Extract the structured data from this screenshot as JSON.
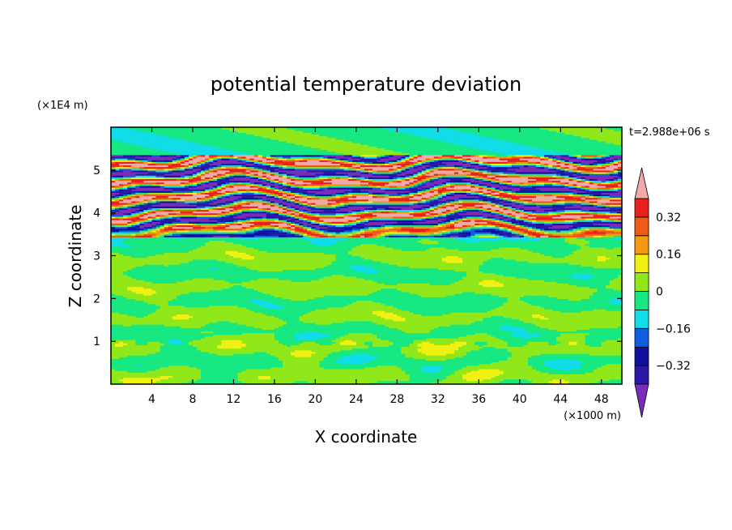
{
  "chart_data": {
    "type": "heatmap",
    "title": "potential temperature deviation",
    "xlabel": "X coordinate",
    "ylabel": "Z coordinate",
    "x_unit": "(×1000 m)",
    "y_unit": "(×1E4 m)",
    "time_label": "t=2.988e+06 s",
    "xlim": [
      0,
      50
    ],
    "ylim": [
      0,
      6
    ],
    "x_ticks": [
      4,
      8,
      12,
      16,
      20,
      24,
      28,
      32,
      36,
      40,
      44,
      48
    ],
    "y_ticks": [
      1,
      2,
      3,
      4,
      5
    ],
    "colorbar": {
      "levels": [
        -0.4,
        -0.32,
        -0.24,
        -0.16,
        -0.08,
        0,
        0.08,
        0.16,
        0.24,
        0.32,
        0.4
      ],
      "labeled_ticks": [
        0.32,
        0.16,
        0,
        -0.16,
        -0.32
      ],
      "tick_labels": [
        "0.32",
        "0.16",
        "0",
        "−0.16",
        "−0.32"
      ],
      "colors": [
        "#7a2cb8",
        "#2a18a8",
        "#1010a0",
        "#0d5fe0",
        "#10dde8",
        "#18e882",
        "#90e81a",
        "#f0f012",
        "#f59a10",
        "#f05a18",
        "#e82020",
        "#f0a8a8"
      ],
      "extend": "both"
    },
    "bands": [
      {
        "z": 5.15,
        "dev": -0.3,
        "note": "upper layered oscillation region"
      },
      {
        "z": 4.95,
        "dev": 0.38
      },
      {
        "z": 4.75,
        "dev": -0.36
      },
      {
        "z": 4.55,
        "dev": 0.3
      },
      {
        "z": 4.35,
        "dev": -0.38
      },
      {
        "z": 4.15,
        "dev": 0.36
      },
      {
        "z": 3.95,
        "dev": -0.38
      },
      {
        "z": 3.75,
        "dev": 0.38
      },
      {
        "z": 3.55,
        "dev": -0.12
      }
    ],
    "grid": false
  }
}
